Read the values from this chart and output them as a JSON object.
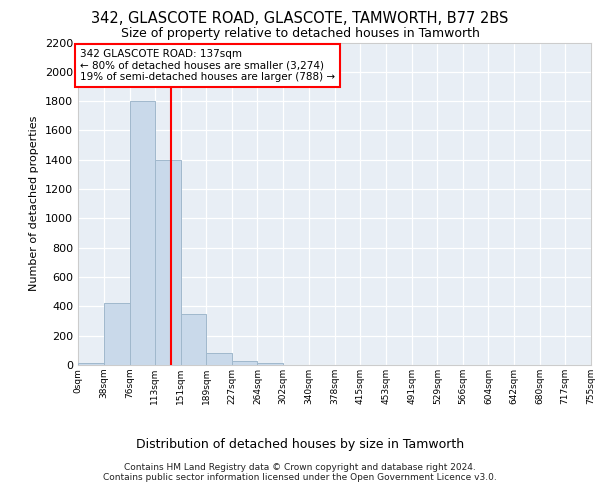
{
  "title1": "342, GLASCOTE ROAD, GLASCOTE, TAMWORTH, B77 2BS",
  "title2": "Size of property relative to detached houses in Tamworth",
  "xlabel": "Distribution of detached houses by size in Tamworth",
  "ylabel": "Number of detached properties",
  "bin_edges": [
    0,
    38,
    76,
    113,
    151,
    189,
    227,
    264,
    302,
    340,
    378,
    415,
    453,
    491,
    529,
    566,
    604,
    642,
    680,
    717,
    755
  ],
  "bar_heights": [
    15,
    420,
    1800,
    1400,
    350,
    80,
    30,
    15,
    0,
    0,
    0,
    0,
    0,
    0,
    0,
    0,
    0,
    0,
    0,
    0
  ],
  "bar_color": "#c9d9ea",
  "bar_edge_color": "#a0b8cc",
  "bg_color": "#e8eef5",
  "grid_color": "#ffffff",
  "red_line_x": 137,
  "annotation_title": "342 GLASCOTE ROAD: 137sqm",
  "annotation_line1": "← 80% of detached houses are smaller (3,274)",
  "annotation_line2": "19% of semi-detached houses are larger (788) →",
  "footnote1": "Contains HM Land Registry data © Crown copyright and database right 2024.",
  "footnote2": "Contains public sector information licensed under the Open Government Licence v3.0.",
  "ylim_max": 2200,
  "yticks": [
    0,
    200,
    400,
    600,
    800,
    1000,
    1200,
    1400,
    1600,
    1800,
    2000,
    2200
  ]
}
